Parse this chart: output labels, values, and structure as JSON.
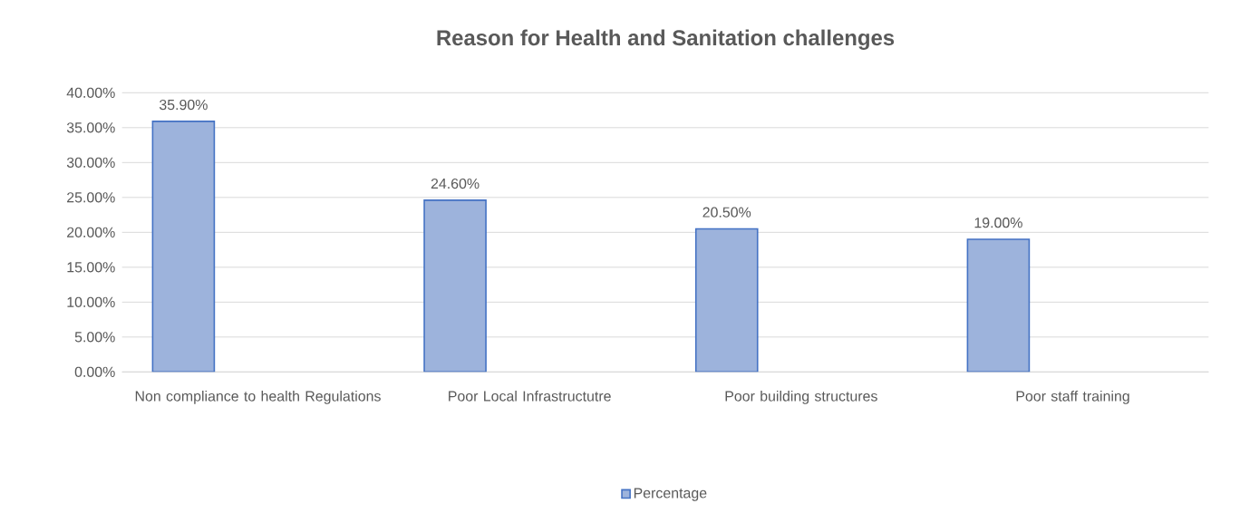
{
  "chart_data": {
    "type": "bar",
    "title": "Reason for Health and Sanitation challenges",
    "categories": [
      "Non compliance to health Regulations",
      "Poor Local Infrastructutre",
      "Poor building structures",
      "Poor staff training"
    ],
    "series": [
      {
        "name": "Percentage",
        "color": "#9db3dc",
        "values": [
          35.9,
          24.6,
          20.5,
          19.0
        ],
        "value_labels": [
          "35.90%",
          "24.60%",
          "20.50%",
          "19.00%"
        ]
      }
    ],
    "ylim": [
      0,
      40
    ],
    "yticks": [
      {
        "value": 0,
        "label": "0.00%"
      },
      {
        "value": 5,
        "label": "5.00%"
      },
      {
        "value": 10,
        "label": "10.00%"
      },
      {
        "value": 15,
        "label": "15.00%"
      },
      {
        "value": 20,
        "label": "20.00%"
      },
      {
        "value": 25,
        "label": "25.00%"
      },
      {
        "value": 30,
        "label": "30.00%"
      },
      {
        "value": 35,
        "label": "35.00%"
      },
      {
        "value": 40,
        "label": "40.00%"
      }
    ],
    "grid": "y",
    "legend": "bottom"
  }
}
